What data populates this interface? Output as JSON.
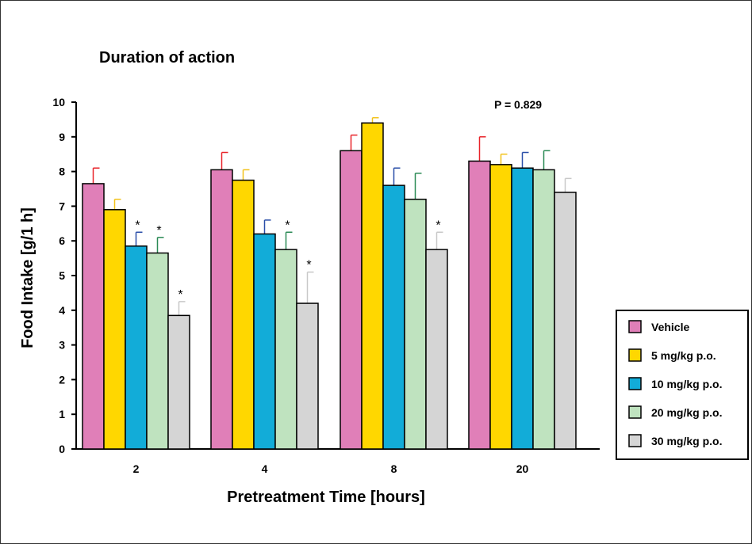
{
  "chart_data": {
    "type": "bar",
    "title": "Duration of action",
    "xlabel": "Pretreatment Time [hours]",
    "ylabel": "Food Intake [g/1 h]",
    "ylim": [
      0,
      10
    ],
    "yticks": [
      0,
      1,
      2,
      3,
      4,
      5,
      6,
      7,
      8,
      9,
      10
    ],
    "categories": [
      "2",
      "4",
      "8",
      "20"
    ],
    "series": [
      {
        "name": "Vehicle",
        "color": "#e07fb8",
        "error_color": "#e8242a",
        "values": [
          7.65,
          8.05,
          8.6,
          8.3
        ],
        "errors": [
          0.45,
          0.5,
          0.45,
          0.7
        ],
        "significant": [
          false,
          false,
          false,
          false
        ]
      },
      {
        "name": "5 mg/kg p.o.",
        "color": "#ffd700",
        "error_color": "#f2c21a",
        "values": [
          6.9,
          7.75,
          9.4,
          8.2
        ],
        "errors": [
          0.3,
          0.3,
          0.15,
          0.3
        ],
        "significant": [
          false,
          false,
          false,
          false
        ]
      },
      {
        "name": "10 mg/kg p.o.",
        "color": "#12acd8",
        "error_color": "#2a4ea8",
        "values": [
          5.85,
          6.2,
          7.6,
          8.1
        ],
        "errors": [
          0.4,
          0.4,
          0.5,
          0.45
        ],
        "significant": [
          true,
          false,
          false,
          false
        ]
      },
      {
        "name": "20 mg/kg p.o.",
        "color": "#bfe3bf",
        "error_color": "#2a8a55",
        "values": [
          5.65,
          5.75,
          7.2,
          8.05
        ],
        "errors": [
          0.45,
          0.5,
          0.75,
          0.55
        ],
        "significant": [
          true,
          true,
          false,
          false
        ]
      },
      {
        "name": "30 mg/kg p.o.",
        "color": "#d5d5d5",
        "error_color": "#c8c8c8",
        "values": [
          3.85,
          4.2,
          5.75,
          7.4
        ],
        "errors": [
          0.4,
          0.9,
          0.5,
          0.4
        ],
        "significant": [
          true,
          true,
          true,
          false
        ]
      }
    ],
    "significance_marker": "*",
    "annotation": "P = 0.829",
    "legend_position": "right",
    "grid": false
  }
}
